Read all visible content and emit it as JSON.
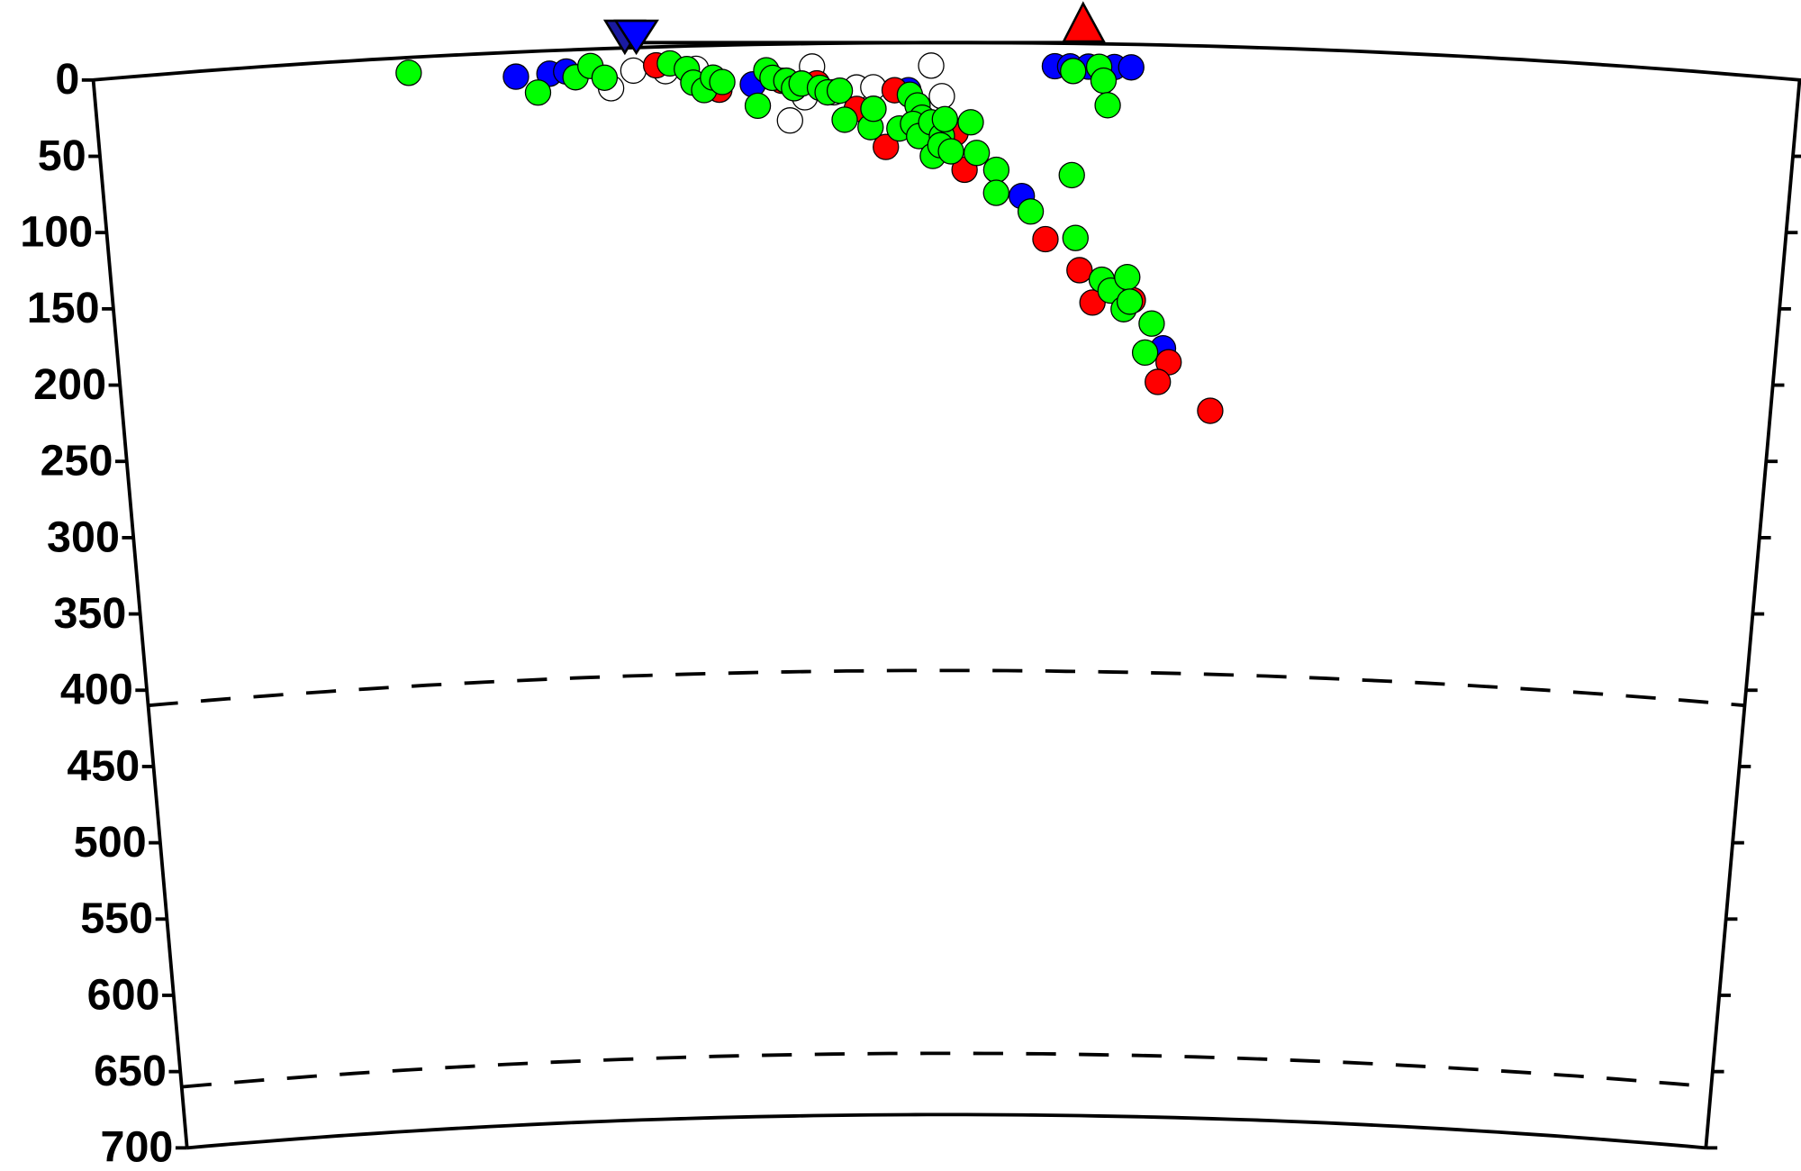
{
  "chart_data": {
    "type": "scatter",
    "projection": "depth-section",
    "xlim": [
      0,
      1116
    ],
    "ylim": [
      0,
      700
    ],
    "yticks": [
      0,
      50,
      100,
      150,
      200,
      250,
      300,
      350,
      400,
      450,
      500,
      550,
      600,
      650,
      700
    ],
    "dashed_depths": [
      410,
      660
    ],
    "series": [
      {
        "color": "#ffffff",
        "x": [
          338,
          353,
          374,
          394,
          470,
          455,
          465,
          484,
          499,
          510,
          548,
          555
        ],
        "values": [
          26,
          15,
          16,
          15,
          15,
          50,
          35,
          32,
          29,
          29,
          15,
          35
        ]
      },
      {
        "color": "#0000ff",
        "x": [
          276,
          298,
          309,
          431,
          533,
          608,
          704,
          629,
          639,
          651,
          668,
          679
        ],
        "values": [
          16,
          15,
          14,
          26,
          31,
          100,
          198,
          15,
          15,
          15,
          15,
          15
        ]
      },
      {
        "color": "#ff0000",
        "x": [
          368,
          409,
          450,
          473,
          499,
          524,
          518,
          564,
          570,
          624,
          647,
          656,
          683,
          708,
          701,
          737
        ],
        "values": [
          12,
          29,
          24,
          26,
          43,
          31,
          68,
          59,
          83,
          128,
          148,
          169,
          167,
          207,
          220,
          238
        ]
      },
      {
        "color": "#00ff00",
        "x": [
          206,
          290,
          315,
          325,
          334,
          377,
          388,
          392,
          399,
          405,
          411,
          434,
          440,
          444,
          453,
          458,
          463,
          475,
          480,
          488,
          491,
          508,
          510,
          527,
          534,
          539,
          542,
          536,
          540,
          548,
          549,
          555,
          557,
          554,
          561,
          574,
          578,
          591,
          591,
          614,
          641,
          644,
          662,
          668,
          679,
          677,
          681,
          696,
          692,
          641,
          658,
          661,
          664
        ],
        "values": [
          10,
          27,
          18,
          11,
          19,
          11,
          15,
          24,
          29,
          21,
          24,
          40,
          17,
          22,
          24,
          29,
          26,
          29,
          32,
          31,
          50,
          55,
          43,
          56,
          34,
          41,
          49,
          53,
          61,
          52,
          74,
          61,
          50,
          67,
          71,
          52,
          72,
          83,
          98,
          110,
          86,
          127,
          154,
          161,
          152,
          173,
          168,
          182,
          201,
          18,
          15,
          24,
          40
        ]
      }
    ]
  }
}
